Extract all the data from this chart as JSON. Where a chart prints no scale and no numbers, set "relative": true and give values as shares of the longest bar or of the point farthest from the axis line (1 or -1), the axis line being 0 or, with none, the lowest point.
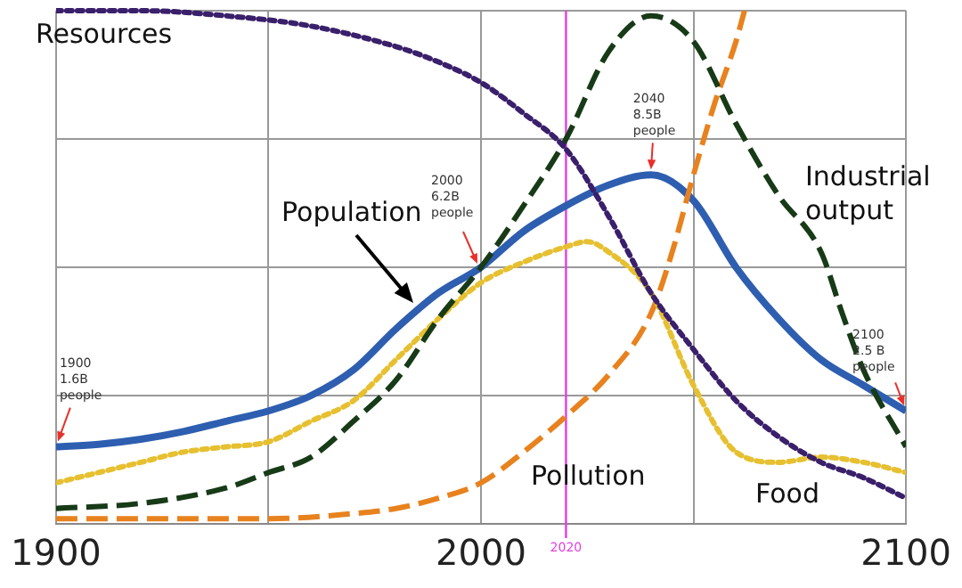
{
  "chart_data": {
    "type": "line",
    "relative": true,
    "grid": true,
    "legend": false,
    "marker": "none",
    "xlim": [
      1900,
      2100
    ],
    "xticks": [
      1900,
      {
        "value": 1950,
        "label": null
      },
      2000,
      {
        "value": 2050,
        "label": null
      },
      2100
    ],
    "series": [
      {
        "name": "Resources",
        "color": "#3a1f6b",
        "line_style": "dotted",
        "x": [
          1900,
          1920,
          1940,
          1960,
          1980,
          1990,
          2000,
          2010,
          2020,
          2030,
          2040,
          2050,
          2060,
          2070,
          2080,
          2090,
          2100
        ],
        "values": [
          1.0,
          1.0,
          0.99,
          0.97,
          0.93,
          0.9,
          0.86,
          0.8,
          0.73,
          0.6,
          0.45,
          0.34,
          0.24,
          0.17,
          0.12,
          0.09,
          0.05
        ]
      },
      {
        "name": "Industrial output",
        "color": "#173a17",
        "line_style": "dashed",
        "x": [
          1900,
          1920,
          1940,
          1950,
          1960,
          1970,
          1980,
          1990,
          2000,
          2010,
          2020,
          2030,
          2040,
          2050,
          2060,
          2070,
          2080,
          2085,
          2090,
          2100
        ],
        "values": [
          0.03,
          0.04,
          0.07,
          0.1,
          0.13,
          0.2,
          0.28,
          0.4,
          0.5,
          0.62,
          0.75,
          0.92,
          0.99,
          0.94,
          0.78,
          0.64,
          0.53,
          0.41,
          0.3,
          0.15
        ]
      },
      {
        "name": "Food",
        "color": "#e6c030",
        "line_style": "dotted",
        "x": [
          1900,
          1910,
          1920,
          1930,
          1940,
          1950,
          1960,
          1970,
          1980,
          1990,
          2000,
          2010,
          2020,
          2025,
          2030,
          2040,
          2050,
          2060,
          2070,
          2080,
          2090,
          2100
        ],
        "values": [
          0.08,
          0.1,
          0.12,
          0.14,
          0.15,
          0.16,
          0.2,
          0.24,
          0.32,
          0.4,
          0.47,
          0.51,
          0.54,
          0.55,
          0.53,
          0.45,
          0.27,
          0.14,
          0.12,
          0.13,
          0.12,
          0.1
        ]
      },
      {
        "name": "Pollution",
        "color": "#e8821e",
        "line_style": "dashed",
        "x": [
          1900,
          1950,
          1970,
          1980,
          1990,
          2000,
          2010,
          2020,
          2030,
          2040,
          2045,
          2050,
          2055,
          2060,
          2062
        ],
        "values": [
          0.01,
          0.01,
          0.02,
          0.03,
          0.05,
          0.08,
          0.14,
          0.21,
          0.29,
          0.41,
          0.53,
          0.68,
          0.82,
          0.94,
          1.0
        ]
      },
      {
        "name": "Population",
        "color": "#2e5eb0",
        "line_style": "solid",
        "x": [
          1900,
          1910,
          1920,
          1930,
          1940,
          1950,
          1960,
          1970,
          1980,
          1990,
          2000,
          2010,
          2020,
          2030,
          2040,
          2050,
          2060,
          2070,
          2080,
          2090,
          2100
        ],
        "values": [
          0.15,
          0.155,
          0.165,
          0.18,
          0.2,
          0.22,
          0.25,
          0.3,
          0.38,
          0.45,
          0.5,
          0.57,
          0.62,
          0.66,
          0.68,
          0.63,
          0.5,
          0.4,
          0.32,
          0.27,
          0.22
        ]
      }
    ],
    "ref_lines": [
      {
        "axis": "x",
        "value": 2020,
        "label": "2020",
        "color": "#e040e0"
      }
    ],
    "annotations": [
      {
        "text": "1900\n1.6B\npeople",
        "x": 1900,
        "y": 0.15
      },
      {
        "text": "2000\n6.2B\npeople",
        "x": 2000,
        "y": 0.5
      },
      {
        "text": "2040\n8.5B\npeople",
        "x": 2040,
        "y": 0.68
      },
      {
        "text": "2100\n2.5 B\npeople",
        "x": 2100,
        "y": 0.22
      }
    ]
  }
}
